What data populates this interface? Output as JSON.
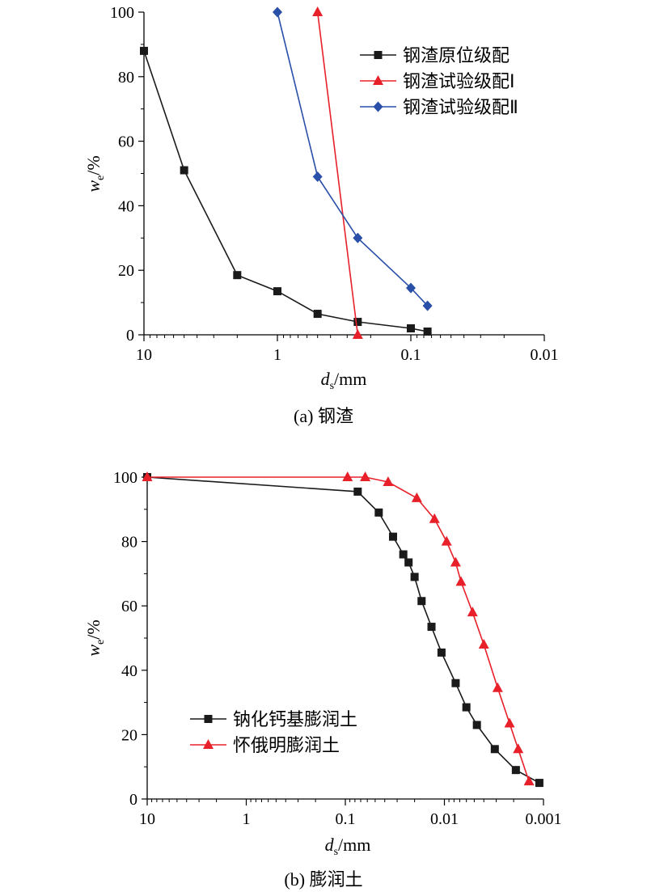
{
  "chart_data": [
    {
      "type": "line",
      "caption": "(a) 钢渣",
      "xlabel_main": "d",
      "xlabel_sub": "s",
      "xlabel_unit": "/mm",
      "ylabel_main": "w",
      "ylabel_sub": "e",
      "ylabel_unit": "/%",
      "x_scale": "log",
      "x_reversed": true,
      "xlim": [
        10,
        0.01
      ],
      "ylim": [
        0,
        100
      ],
      "x_ticks": [
        {
          "value": 10,
          "label": "10"
        },
        {
          "value": 1,
          "label": "1"
        },
        {
          "value": 0.1,
          "label": "0.1"
        },
        {
          "value": 0.01,
          "label": "0.01"
        }
      ],
      "y_ticks": [
        {
          "value": 0,
          "label": "0"
        },
        {
          "value": 20,
          "label": "20"
        },
        {
          "value": 40,
          "label": "40"
        },
        {
          "value": 60,
          "label": "60"
        },
        {
          "value": 80,
          "label": "80"
        },
        {
          "value": 100,
          "label": "100"
        }
      ],
      "grid": false,
      "legend_position": "top-right",
      "series": [
        {
          "name": "钢渣原位级配",
          "color": "#1a1a1a",
          "marker": "square",
          "points": [
            [
              10,
              88
            ],
            [
              5,
              51
            ],
            [
              2,
              18.5
            ],
            [
              1,
              13.5
            ],
            [
              0.5,
              6.5
            ],
            [
              0.25,
              4
            ],
            [
              0.1,
              2
            ],
            [
              0.075,
              1
            ]
          ]
        },
        {
          "name": "钢渣试验级配Ⅰ",
          "color": "#e8202a",
          "marker": "triangle",
          "points": [
            [
              0.5,
              100
            ],
            [
              0.25,
              0
            ]
          ]
        },
        {
          "name": "钢渣试验级配Ⅱ",
          "color": "#2a4fa8",
          "marker": "diamond",
          "points": [
            [
              1,
              100
            ],
            [
              0.5,
              49
            ],
            [
              0.25,
              30
            ],
            [
              0.1,
              14.5
            ],
            [
              0.075,
              9
            ]
          ]
        }
      ]
    },
    {
      "type": "line",
      "caption": "(b) 膨润土",
      "xlabel_main": "d",
      "xlabel_sub": "s",
      "xlabel_unit": "/mm",
      "ylabel_main": "w",
      "ylabel_sub": "e",
      "ylabel_unit": "/%",
      "x_scale": "log",
      "x_reversed": true,
      "xlim": [
        10,
        0.001
      ],
      "ylim": [
        0,
        100
      ],
      "x_ticks": [
        {
          "value": 10,
          "label": "10"
        },
        {
          "value": 1,
          "label": "1"
        },
        {
          "value": 0.1,
          "label": "0.1"
        },
        {
          "value": 0.01,
          "label": "0.01"
        },
        {
          "value": 0.001,
          "label": "0.001"
        }
      ],
      "y_ticks": [
        {
          "value": 0,
          "label": "0"
        },
        {
          "value": 20,
          "label": "20"
        },
        {
          "value": 40,
          "label": "40"
        },
        {
          "value": 60,
          "label": "60"
        },
        {
          "value": 80,
          "label": "80"
        },
        {
          "value": 100,
          "label": "100"
        }
      ],
      "grid": false,
      "legend_position": "bottom-left",
      "series": [
        {
          "name": "钠化钙基膨润土",
          "color": "#1a1a1a",
          "marker": "square",
          "points": [
            [
              10,
              100
            ],
            [
              0.075,
              95.5
            ],
            [
              0.046,
              89
            ],
            [
              0.033,
              81.5
            ],
            [
              0.026,
              76
            ],
            [
              0.023,
              73.5
            ],
            [
              0.02,
              69
            ],
            [
              0.017,
              61.5
            ],
            [
              0.0135,
              53.5
            ],
            [
              0.0107,
              45.5
            ],
            [
              0.0077,
              36
            ],
            [
              0.006,
              28.5
            ],
            [
              0.0047,
              23
            ],
            [
              0.0031,
              15.5
            ],
            [
              0.0019,
              9
            ],
            [
              0.0011,
              5
            ]
          ]
        },
        {
          "name": "怀俄明膨润土",
          "color": "#e8202a",
          "marker": "triangle",
          "points": [
            [
              10,
              100
            ],
            [
              0.095,
              100
            ],
            [
              0.063,
              100
            ],
            [
              0.037,
              98.5
            ],
            [
              0.019,
              93.5
            ],
            [
              0.0126,
              87
            ],
            [
              0.0095,
              80
            ],
            [
              0.0077,
              73.5
            ],
            [
              0.0068,
              67.5
            ],
            [
              0.0052,
              58
            ],
            [
              0.004,
              48
            ],
            [
              0.0029,
              34.5
            ],
            [
              0.0022,
              23.5
            ],
            [
              0.0018,
              15.5
            ],
            [
              0.0014,
              5.5
            ]
          ]
        }
      ]
    }
  ]
}
